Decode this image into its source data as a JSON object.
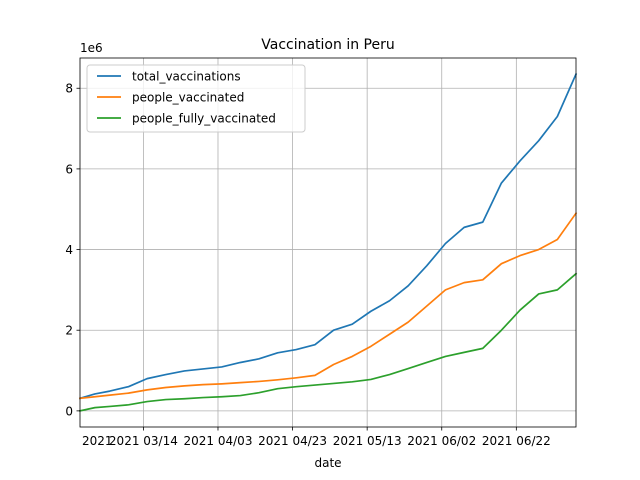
{
  "chart_data": {
    "type": "line",
    "title": "Vaccination in Peru",
    "xlabel": "date",
    "ylabel": "",
    "y_scale_label": "1e6",
    "grid": true,
    "legend_placement": "top-left",
    "xlim": [
      "2021-02-25",
      "2021-07-08"
    ],
    "ylim": [
      -400000,
      8750000
    ],
    "x_tick_labels": [
      "2021 03/14",
      "2021 04/03",
      "2021 04/23",
      "2021 05/13",
      "2021 06/02",
      "2021 06/22"
    ],
    "x_tick_dates": [
      "2021-02-22",
      "2021-03-14",
      "2021-04-03",
      "2021-04-23",
      "2021-05-13",
      "2021-06-02",
      "2021-06-22"
    ],
    "y_ticks": [
      0,
      2000000,
      4000000,
      6000000,
      8000000
    ],
    "y_tick_labels": [
      "0",
      "2",
      "4",
      "6",
      "8"
    ],
    "x": [
      "2021-02-25",
      "2021-03-01",
      "2021-03-05",
      "2021-03-10",
      "2021-03-15",
      "2021-03-20",
      "2021-03-25",
      "2021-03-30",
      "2021-04-04",
      "2021-04-09",
      "2021-04-14",
      "2021-04-19",
      "2021-04-24",
      "2021-04-29",
      "2021-05-04",
      "2021-05-09",
      "2021-05-14",
      "2021-05-19",
      "2021-05-24",
      "2021-05-29",
      "2021-06-03",
      "2021-06-08",
      "2021-06-13",
      "2021-06-18",
      "2021-06-23",
      "2021-06-28",
      "2021-07-03",
      "2021-07-08"
    ],
    "series": [
      {
        "name": "total_vaccinations",
        "color": "#1f77b4",
        "values": [
          310000,
          420000,
          490000,
          600000,
          800000,
          900000,
          990000,
          1040000,
          1090000,
          1200000,
          1290000,
          1440000,
          1520000,
          1640000,
          2000000,
          2150000,
          2470000,
          2730000,
          3100000,
          3600000,
          4150000,
          4550000,
          4680000,
          5650000,
          6200000,
          6700000,
          7300000,
          8350000
        ]
      },
      {
        "name": "people_vaccinated",
        "color": "#ff7f0e",
        "values": [
          310000,
          350000,
          390000,
          440000,
          520000,
          580000,
          620000,
          650000,
          670000,
          700000,
          730000,
          770000,
          820000,
          880000,
          1150000,
          1350000,
          1600000,
          1900000,
          2200000,
          2600000,
          3000000,
          3180000,
          3250000,
          3650000,
          3850000,
          4000000,
          4250000,
          4900000
        ]
      },
      {
        "name": "people_fully_vaccinated",
        "color": "#2ca02c",
        "values": [
          0,
          80000,
          110000,
          150000,
          230000,
          280000,
          300000,
          330000,
          350000,
          380000,
          450000,
          550000,
          600000,
          640000,
          680000,
          720000,
          780000,
          900000,
          1050000,
          1200000,
          1350000,
          1450000,
          1550000,
          2000000,
          2500000,
          2900000,
          3000000,
          3400000
        ]
      }
    ]
  }
}
